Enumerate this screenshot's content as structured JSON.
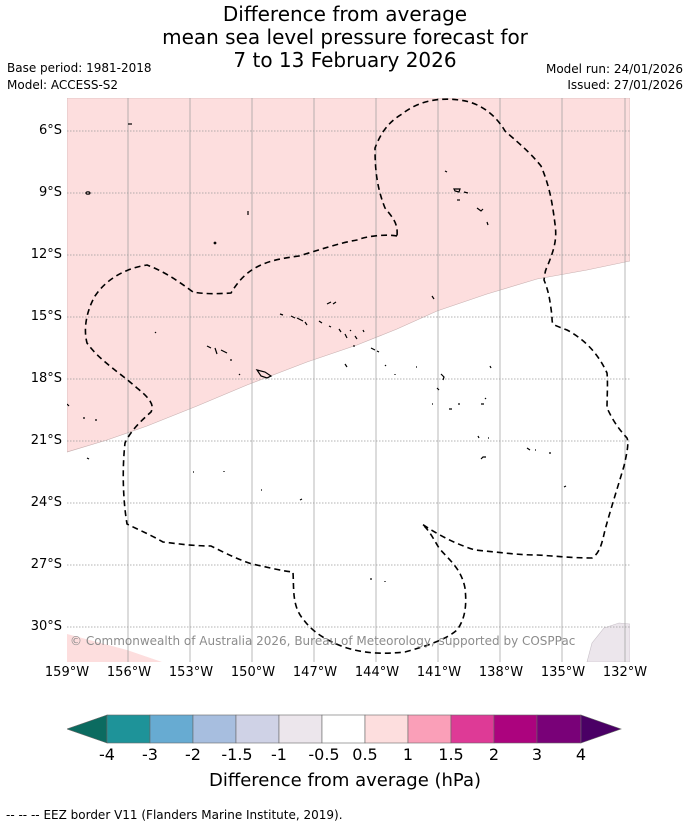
{
  "title": {
    "line1": "Difference from average",
    "line2": "mean sea level pressure forecast for",
    "line3": "7 to 13 February 2026"
  },
  "meta": {
    "base_period": "Base period: 1981-2018",
    "model": "Model: ACCESS-S2",
    "model_run": "Model run: 24/01/2026",
    "issued": "Issued: 27/01/2026"
  },
  "map": {
    "lat_ticks": [
      "6°S",
      "9°S",
      "12°S",
      "15°S",
      "18°S",
      "21°S",
      "24°S",
      "27°S",
      "30°S"
    ],
    "lon_ticks": [
      "159°W",
      "156°W",
      "153°W",
      "150°W",
      "147°W",
      "144°W",
      "141°W",
      "138°W",
      "135°W",
      "132°W"
    ],
    "copyright": "© Commonwealth of Australia 2026, Bureau of Meteorology, supported by COSPPac",
    "colors": {
      "positive_anomaly_fill": "#fddede",
      "coast": "#000000",
      "eez": "#000000",
      "grid": "#9a9a9a"
    }
  },
  "colorbar": {
    "labels": [
      "-4",
      "-3",
      "-2",
      "-1.5",
      "-1",
      "-0.5",
      "0.5",
      "1",
      "1.5",
      "2",
      "3",
      "4"
    ],
    "colors": [
      "#0b6b60",
      "#1e9399",
      "#67abd2",
      "#a7bedf",
      "#cfd2e6",
      "#ece6ec",
      "#ffffff",
      "#fddede",
      "#fa9fb8",
      "#de3a96",
      "#ac037e",
      "#790178",
      "#4a0065"
    ],
    "title": "Difference from average (hPa)"
  },
  "footer": {
    "legend_marker": "--  --  --",
    "legend_text": "EEZ border V11 (Flanders Marine Institute, 2019)."
  }
}
